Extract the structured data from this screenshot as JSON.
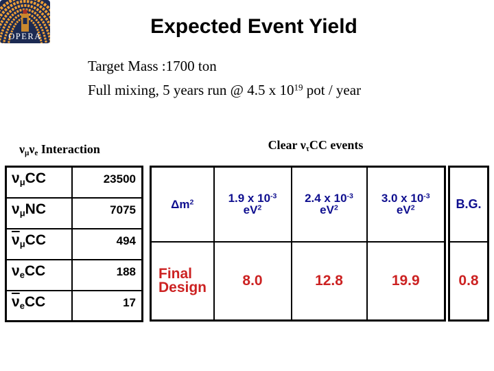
{
  "logo": {
    "text": "OPERA"
  },
  "title": "Expected Event Yield",
  "intro": {
    "line1": [
      {
        "t": "Target Mass :1700 ton"
      }
    ],
    "line2": [
      {
        "t": "Full mixing, 5 years run @ 4.5 x 10"
      },
      {
        "t": "19",
        "sup": true
      },
      {
        "t": " pot / year"
      }
    ]
  },
  "left_table": {
    "caption": [
      {
        "t": "ν"
      },
      {
        "t": "μ",
        "sub": true
      },
      {
        "t": "ν"
      },
      {
        "t": "e",
        "sub": true
      },
      {
        "t": " Interaction"
      }
    ],
    "rows": [
      {
        "label": [
          {
            "t": "ν"
          },
          {
            "t": "μ",
            "sub": true
          },
          {
            "t": "CC"
          }
        ],
        "value": "23500"
      },
      {
        "label": [
          {
            "t": "ν"
          },
          {
            "t": "μ",
            "sub": true
          },
          {
            "t": "NC"
          }
        ],
        "value": "7075"
      },
      {
        "label": [
          {
            "t": "ν",
            "bar": true
          },
          {
            "t": "μ",
            "sub": true
          },
          {
            "t": "CC"
          }
        ],
        "value": "494"
      },
      {
        "label": [
          {
            "t": "ν"
          },
          {
            "t": "e",
            "sub": true
          },
          {
            "t": "CC"
          }
        ],
        "value": "188"
      },
      {
        "label": [
          {
            "t": "ν",
            "bar": true
          },
          {
            "t": "e",
            "sub": true
          },
          {
            "t": "CC"
          }
        ],
        "value": "17"
      }
    ]
  },
  "right_table": {
    "caption": [
      {
        "t": "Clear ν"
      },
      {
        "t": "τ",
        "sub": true
      },
      {
        "t": "CC events"
      }
    ],
    "header": {
      "param": [
        {
          "t": "Δm"
        },
        {
          "t": "2",
          "sup": true
        }
      ],
      "cols": [
        [
          {
            "t": "1.9 x 10"
          },
          {
            "t": "-3",
            "sup": true
          },
          {
            "br": true
          },
          {
            "t": "eV"
          },
          {
            "t": "2",
            "sup": true
          }
        ],
        [
          {
            "t": "2.4 x 10"
          },
          {
            "t": "-3",
            "sup": true
          },
          {
            "br": true
          },
          {
            "t": "eV"
          },
          {
            "t": "2",
            "sup": true
          }
        ],
        [
          {
            "t": "3.0 x 10"
          },
          {
            "t": "-3",
            "sup": true
          },
          {
            "br": true
          },
          {
            "t": "eV"
          },
          {
            "t": "2",
            "sup": true
          }
        ]
      ],
      "bg": "B.G."
    },
    "data_row": {
      "label": [
        {
          "t": "Final"
        },
        {
          "br": true
        },
        {
          "t": "Design"
        }
      ],
      "values": [
        "8.0",
        "12.8",
        "19.9"
      ],
      "bg_value": "0.8"
    }
  },
  "colors": {
    "header_navy": "#0f0f8f",
    "result_red": "#cc2222",
    "logo_navy": "#1c2a52",
    "logo_gold": "#ef9f35",
    "border_black": "#000000"
  }
}
